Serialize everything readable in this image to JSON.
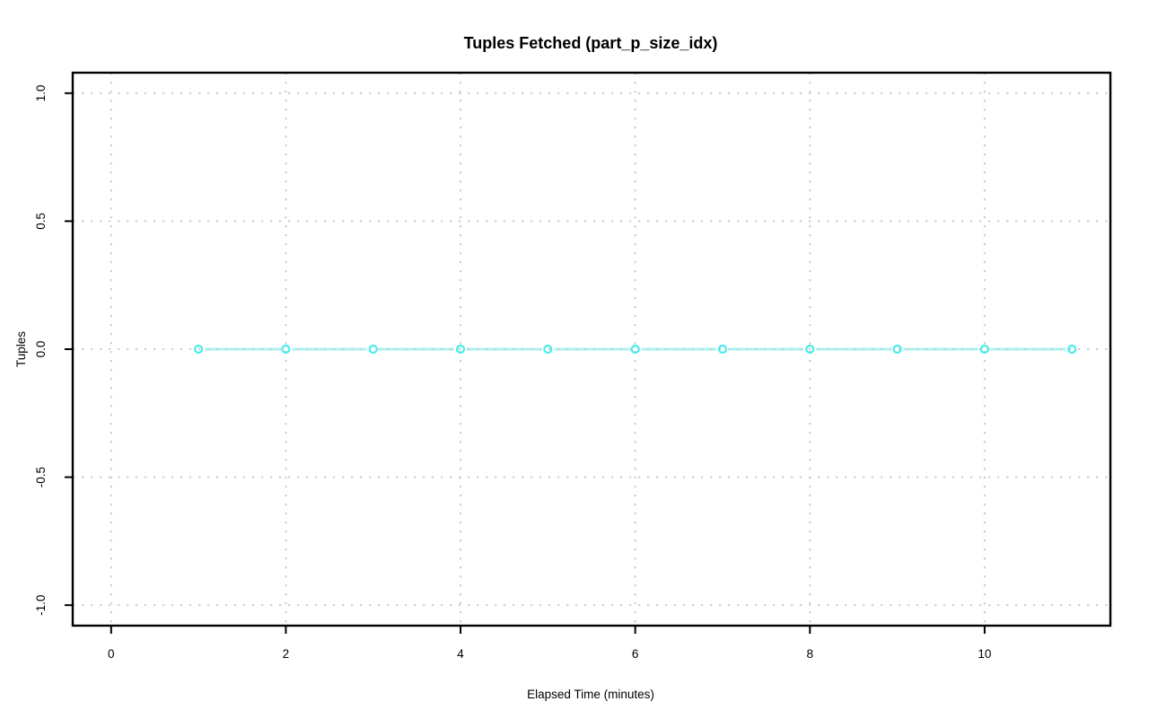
{
  "figure": {
    "background": "#FFFFFF"
  },
  "chart_data": {
    "type": "line",
    "title": "Tuples Fetched (part_p_size_idx)",
    "xlabel": "Elapsed Time (minutes)",
    "ylabel": "Tuples",
    "series": [
      {
        "name": "Tuples",
        "x": [
          1,
          2,
          3,
          4,
          5,
          6,
          7,
          8,
          9,
          10,
          11
        ],
        "y": [
          0,
          0,
          0,
          0,
          0,
          0,
          0,
          0,
          0,
          0,
          0
        ]
      }
    ],
    "xticks": [
      0,
      2,
      4,
      6,
      8,
      10
    ],
    "xtick_labels": [
      "0",
      "2",
      "4",
      "6",
      "8",
      "10"
    ],
    "yticks": [
      -1.0,
      -0.5,
      0.0,
      0.5,
      1.0
    ],
    "ytick_labels": [
      "-1.0",
      "-0.5",
      "0.0",
      "0.5",
      "1.0"
    ],
    "xlim": [
      -0.44,
      11.44
    ],
    "ylim": [
      -1.08,
      1.08
    ],
    "grid": "dotted",
    "legend": "none",
    "marker": "open-circle",
    "line_type": "b",
    "colors": {
      "line": "#a9f4f2",
      "marker": "#4aeceb",
      "grid": "#cccccc",
      "frame": "#000000",
      "text": "#000000",
      "background": "#ffffff"
    }
  }
}
